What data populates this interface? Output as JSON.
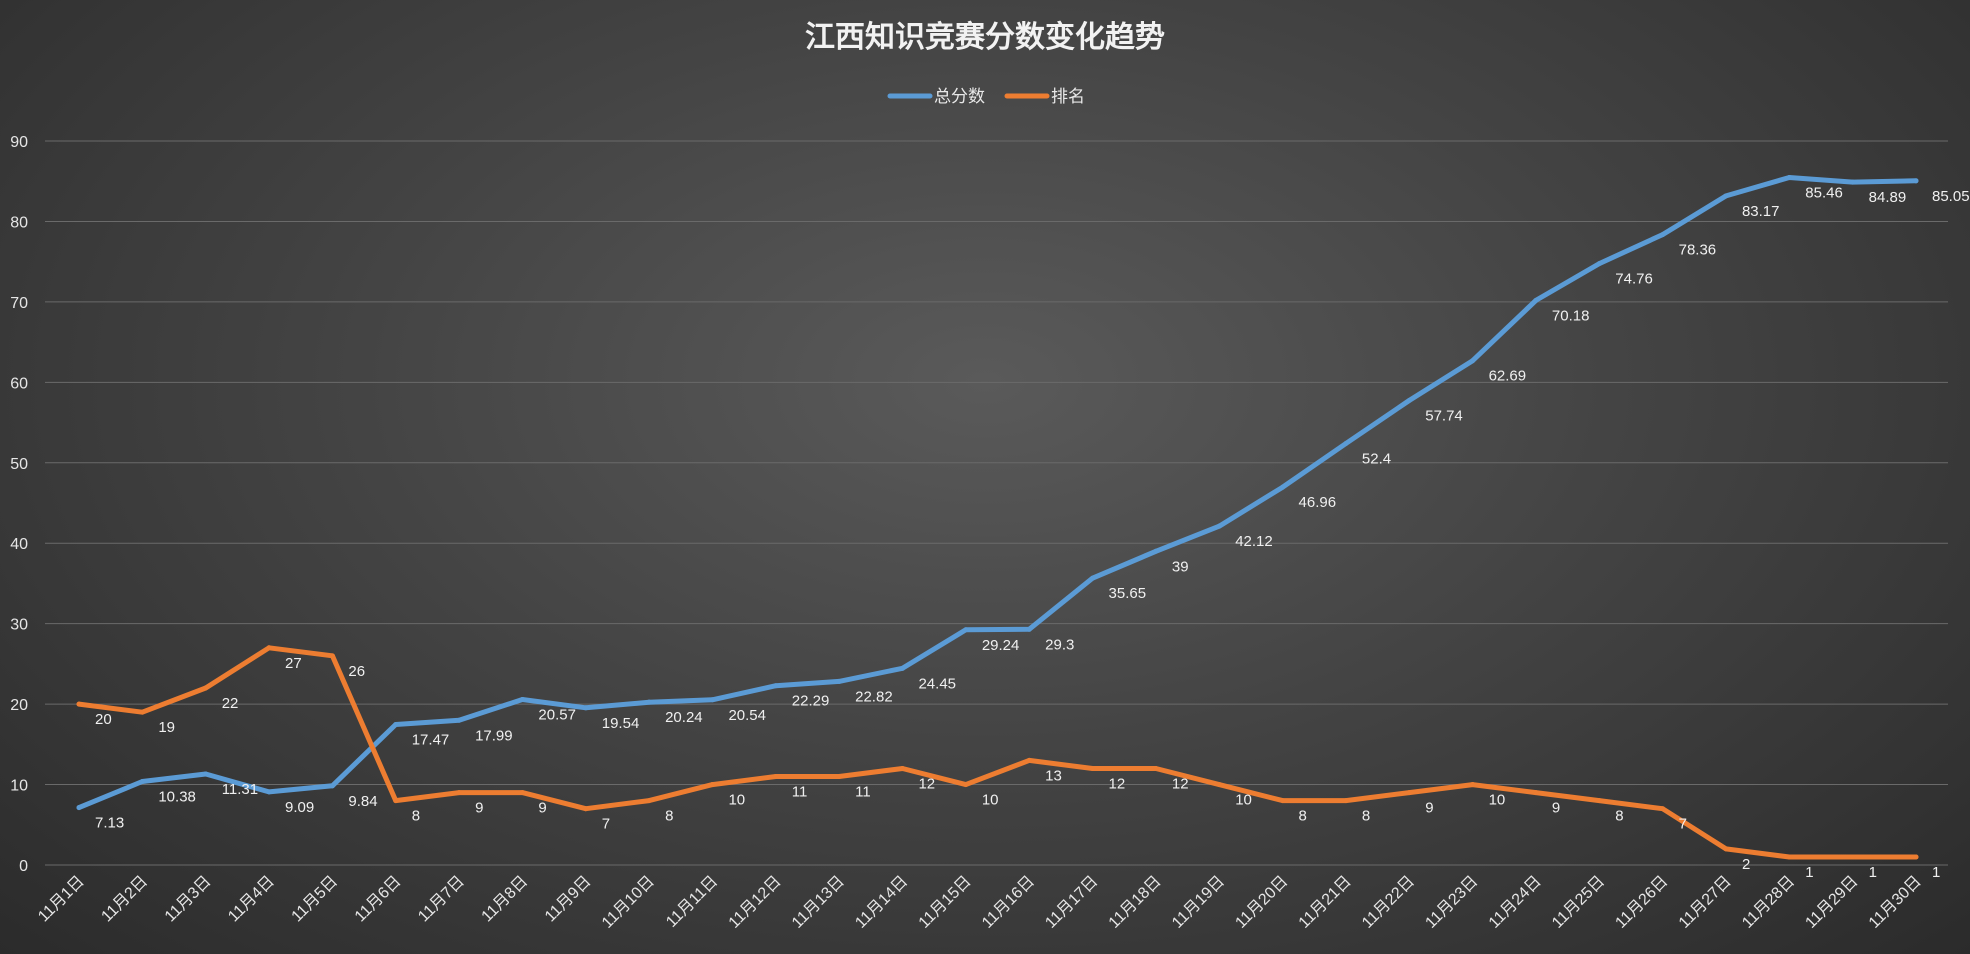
{
  "chart_data": {
    "type": "line",
    "title": "江西知识竞赛分数变化趋势",
    "categories": [
      "11月1日",
      "11月2日",
      "11月3日",
      "11月4日",
      "11月5日",
      "11月6日",
      "11月7日",
      "11月8日",
      "11月9日",
      "11月10日",
      "11月11日",
      "11月12日",
      "11月13日",
      "11月14日",
      "11月15日",
      "11月16日",
      "11月17日",
      "11月18日",
      "11月19日",
      "11月20日",
      "11月21日",
      "11月22日",
      "11月23日",
      "11月24日",
      "11月25日",
      "11月26日",
      "11月27日",
      "11月28日",
      "11月29日",
      "11月30日"
    ],
    "series": [
      {
        "name": "总分数",
        "color": "#5b9bd5",
        "values": [
          7.13,
          10.38,
          11.31,
          9.09,
          9.84,
          17.47,
          17.99,
          20.57,
          19.54,
          20.24,
          20.54,
          22.29,
          22.82,
          24.45,
          29.24,
          29.3,
          35.65,
          39,
          42.12,
          46.96,
          52.4,
          57.74,
          62.69,
          70.18,
          74.76,
          78.36,
          83.17,
          85.46,
          84.89,
          85.05
        ],
        "labels": [
          "7.13",
          "10.38",
          "11.31",
          "9.09",
          "9.84",
          "17.47",
          "17.99",
          "20.57",
          "19.54",
          "20.24",
          "20.54",
          "22.29",
          "22.82",
          "24.45",
          "29.24",
          "29.3",
          "35.65",
          "39",
          "42.12",
          "46.96",
          "52.4",
          "57.74",
          "62.69",
          "70.18",
          "74.76",
          "78.36",
          "83.17",
          "85.46",
          "84.89",
          "85.05"
        ]
      },
      {
        "name": "排名",
        "color": "#ed7d31",
        "values": [
          20,
          19,
          22,
          27,
          26,
          8,
          9,
          9,
          7,
          8,
          10,
          11,
          11,
          12,
          10,
          13,
          12,
          12,
          10,
          8,
          8,
          9,
          10,
          9,
          8,
          7,
          2,
          1,
          1,
          1
        ],
        "labels": [
          "20",
          "19",
          "22",
          "27",
          "26",
          "8",
          "9",
          "9",
          "7",
          "8",
          "10",
          "11",
          "11",
          "12",
          "10",
          "13",
          "12",
          "12",
          "10",
          "8",
          "8",
          "9",
          "10",
          "9",
          "8",
          "7",
          "2",
          "1",
          "1",
          "1"
        ]
      }
    ],
    "ylim": [
      0,
      90
    ],
    "yticks": [
      "0",
      "10",
      "20",
      "30",
      "40",
      "50",
      "60",
      "70",
      "80",
      "90"
    ],
    "grid": true,
    "legend_position": "top"
  }
}
